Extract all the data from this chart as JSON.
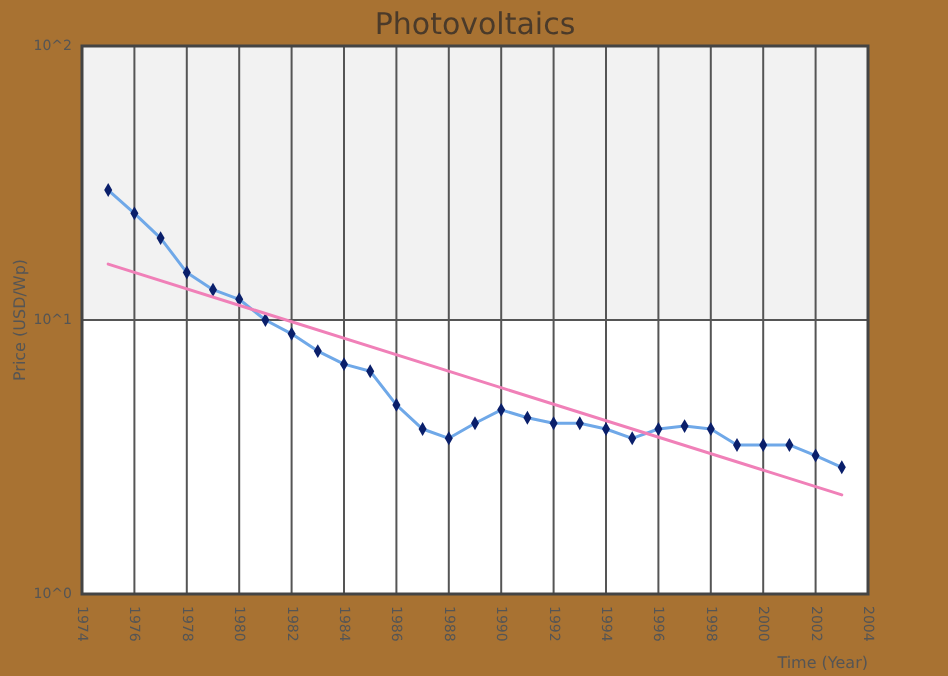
{
  "chart_data": {
    "type": "line",
    "title": "Photovoltaics",
    "xlabel": "Time (Year)",
    "ylabel": "Price (USD/Wp)",
    "x": [
      1975,
      1976,
      1977,
      1978,
      1979,
      1980,
      1981,
      1982,
      1983,
      1984,
      1985,
      1986,
      1987,
      1988,
      1989,
      1990,
      1991,
      1992,
      1993,
      1994,
      1995,
      1996,
      1997,
      1998,
      1999,
      2000,
      2001,
      2002,
      2003
    ],
    "series": [
      {
        "color": "#6fa8e8",
        "values": [
          29.8,
          24.5,
          19.9,
          14.9,
          12.9,
          11.9,
          10,
          8.9,
          7.7,
          6.9,
          6.5,
          4.9,
          4.0,
          3.7,
          4.2,
          4.7,
          4.4,
          4.2,
          4.2,
          4.0,
          3.7,
          4.0,
          4.1,
          4.0,
          3.5,
          3.5,
          3.5,
          3.2,
          2.9
        ]
      },
      {
        "type": "line",
        "color": "#f080b8",
        "marker": "none",
        "x": [
          1975,
          2003
        ],
        "values": [
          16,
          2.3
        ]
      }
    ],
    "log": true,
    "xlim": [
      1974,
      2004
    ],
    "xticks": [
      1974,
      1976,
      1978,
      1980,
      1982,
      1984,
      1986,
      1988,
      1990,
      1992,
      1994,
      1996,
      1998,
      2000,
      2002,
      2004
    ],
    "ylim": [
      1,
      100
    ],
    "yticks": [
      {
        "value": 1,
        "label": "10^0"
      },
      {
        "value": 10,
        "label": "10^1"
      },
      {
        "value": 100,
        "label": "10^2"
      }
    ],
    "bands": [
      {
        "axis": "y",
        "from": 10,
        "to": 100,
        "color": "#f2f2f2"
      }
    ],
    "grid": true,
    "marker": "diamond",
    "line_style": "solid"
  }
}
